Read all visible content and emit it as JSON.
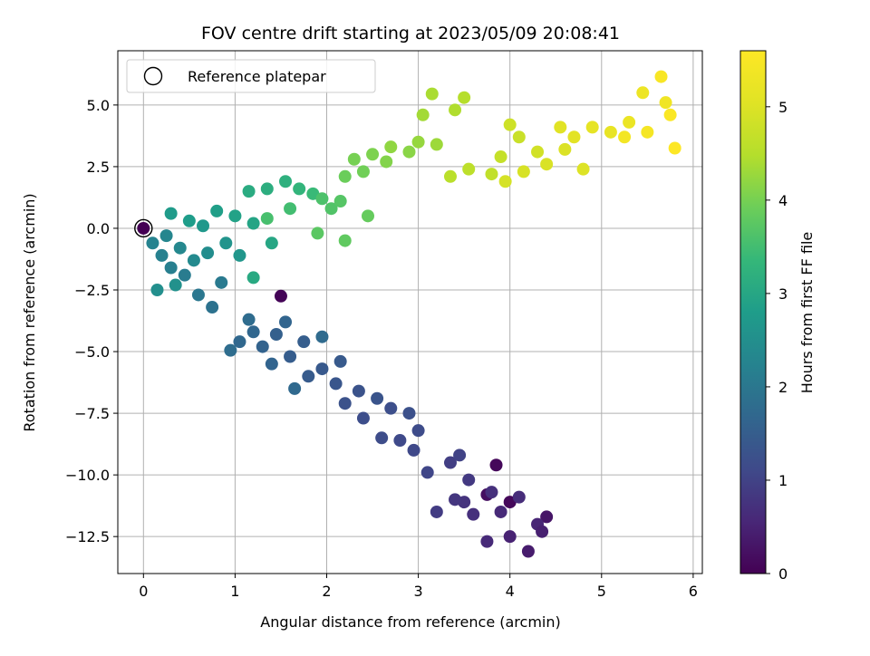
{
  "chart_data": {
    "type": "scatter",
    "title": "FOV centre drift starting at 2023/05/09 20:08:41",
    "xlabel": "Angular distance from reference (arcmin)",
    "ylabel": "Rotation from reference (arcmin)",
    "xlim": [
      -0.28,
      6.1
    ],
    "ylim": [
      -14.0,
      7.2
    ],
    "xticks": [
      0,
      1,
      2,
      3,
      4,
      5,
      6
    ],
    "xtick_labels": [
      "0",
      "1",
      "2",
      "3",
      "4",
      "5",
      "6"
    ],
    "yticks": [
      5.0,
      2.5,
      0.0,
      -2.5,
      -5.0,
      -7.5,
      -10.0,
      -12.5
    ],
    "ytick_labels": [
      "5.0",
      "2.5",
      "0.0",
      "−2.5",
      "−5.0",
      "−7.5",
      "−10.0",
      "−12.5"
    ],
    "grid": true,
    "legend": {
      "position": "upper-left",
      "entries": [
        "Reference platepar"
      ]
    },
    "reference_point": {
      "x": 0.0,
      "y": 0.0,
      "marker": "hollow-circle"
    },
    "colorbar": {
      "label": "Hours from first FF file",
      "range": [
        0,
        5.6
      ],
      "ticks": [
        0,
        1,
        2,
        3,
        4,
        5
      ],
      "tick_labels": [
        "0",
        "1",
        "2",
        "3",
        "4",
        "5"
      ],
      "colormap": "viridis"
    },
    "series": [
      {
        "color_by": "hours_from_first_ff",
        "points": [
          [
            0.0,
            0.0,
            0.0
          ],
          [
            1.5,
            -2.75,
            0.05
          ],
          [
            3.85,
            -9.6,
            0.1
          ],
          [
            4.0,
            -11.1,
            0.1
          ],
          [
            3.75,
            -10.8,
            0.2
          ],
          [
            4.4,
            -11.7,
            0.3
          ],
          [
            4.2,
            -13.1,
            0.4
          ],
          [
            4.0,
            -12.5,
            0.5
          ],
          [
            4.3,
            -12.0,
            0.55
          ],
          [
            3.9,
            -11.5,
            0.6
          ],
          [
            4.1,
            -10.9,
            0.65
          ],
          [
            3.6,
            -11.6,
            0.7
          ],
          [
            3.5,
            -11.1,
            0.75
          ],
          [
            3.75,
            -12.7,
            0.6
          ],
          [
            4.35,
            -12.3,
            0.45
          ],
          [
            3.8,
            -10.7,
            0.7
          ],
          [
            3.4,
            -11.0,
            0.8
          ],
          [
            3.55,
            -10.2,
            0.85
          ],
          [
            3.2,
            -11.5,
            0.9
          ],
          [
            3.35,
            -9.5,
            0.95
          ],
          [
            3.45,
            -9.2,
            1.0
          ],
          [
            3.1,
            -9.9,
            1.05
          ],
          [
            2.95,
            -9.0,
            1.1
          ],
          [
            2.8,
            -8.6,
            1.12
          ],
          [
            3.0,
            -8.2,
            1.15
          ],
          [
            2.6,
            -8.5,
            1.18
          ],
          [
            2.4,
            -7.7,
            1.2
          ],
          [
            2.7,
            -7.3,
            1.22
          ],
          [
            2.9,
            -7.5,
            1.25
          ],
          [
            2.2,
            -7.1,
            1.28
          ],
          [
            2.35,
            -6.6,
            1.3
          ],
          [
            2.55,
            -6.9,
            1.32
          ],
          [
            2.1,
            -6.3,
            1.35
          ],
          [
            1.95,
            -5.7,
            1.4
          ],
          [
            2.15,
            -5.4,
            1.42
          ],
          [
            1.8,
            -6.0,
            1.45
          ],
          [
            1.6,
            -5.2,
            1.48
          ],
          [
            1.75,
            -4.6,
            1.5
          ],
          [
            1.45,
            -4.3,
            1.55
          ],
          [
            1.3,
            -4.8,
            1.6
          ],
          [
            1.4,
            -5.5,
            1.62
          ],
          [
            1.55,
            -3.8,
            1.65
          ],
          [
            1.2,
            -4.2,
            1.68
          ],
          [
            1.05,
            -4.6,
            1.7
          ],
          [
            1.65,
            -6.5,
            1.72
          ],
          [
            1.95,
            -4.4,
            1.75
          ],
          [
            1.15,
            -3.7,
            1.78
          ],
          [
            0.95,
            -4.95,
            1.8
          ],
          [
            0.75,
            -3.2,
            1.9
          ],
          [
            0.6,
            -2.7,
            2.0
          ],
          [
            0.85,
            -2.2,
            2.05
          ],
          [
            0.45,
            -1.9,
            2.1
          ],
          [
            0.3,
            -1.6,
            2.15
          ],
          [
            0.2,
            -1.1,
            2.2
          ],
          [
            0.1,
            -0.6,
            2.25
          ],
          [
            0.25,
            -0.3,
            2.3
          ],
          [
            0.4,
            -0.8,
            2.35
          ],
          [
            0.55,
            -1.3,
            2.4
          ],
          [
            0.7,
            -1.0,
            2.45
          ],
          [
            0.15,
            -2.5,
            2.5
          ],
          [
            0.35,
            -2.3,
            2.55
          ],
          [
            0.9,
            -0.6,
            2.6
          ],
          [
            1.05,
            -1.1,
            2.65
          ],
          [
            0.65,
            0.1,
            2.7
          ],
          [
            0.3,
            0.6,
            2.75
          ],
          [
            0.5,
            0.3,
            2.8
          ],
          [
            0.8,
            0.7,
            2.85
          ],
          [
            1.0,
            0.5,
            2.9
          ],
          [
            1.2,
            0.2,
            2.95
          ],
          [
            1.4,
            -0.6,
            3.0
          ],
          [
            1.2,
            -2.0,
            3.05
          ],
          [
            1.15,
            1.5,
            3.1
          ],
          [
            1.35,
            1.6,
            3.15
          ],
          [
            1.55,
            1.9,
            3.2
          ],
          [
            1.7,
            1.6,
            3.3
          ],
          [
            1.85,
            1.4,
            3.4
          ],
          [
            1.6,
            0.8,
            3.5
          ],
          [
            1.35,
            0.4,
            3.55
          ],
          [
            1.95,
            1.2,
            3.6
          ],
          [
            2.05,
            0.8,
            3.65
          ],
          [
            2.15,
            1.1,
            3.7
          ],
          [
            1.9,
            -0.2,
            3.75
          ],
          [
            2.2,
            -0.5,
            3.8
          ],
          [
            2.45,
            0.5,
            3.85
          ],
          [
            2.2,
            2.1,
            3.9
          ],
          [
            2.4,
            2.3,
            3.95
          ],
          [
            2.3,
            2.8,
            4.0
          ],
          [
            2.5,
            3.0,
            4.05
          ],
          [
            2.65,
            2.7,
            4.1
          ],
          [
            2.9,
            3.1,
            4.15
          ],
          [
            2.7,
            3.3,
            4.2
          ],
          [
            3.0,
            3.5,
            4.25
          ],
          [
            3.2,
            3.4,
            4.3
          ],
          [
            3.05,
            4.6,
            4.35
          ],
          [
            3.15,
            5.45,
            4.4
          ],
          [
            3.4,
            4.8,
            4.45
          ],
          [
            3.5,
            5.3,
            4.5
          ],
          [
            3.35,
            2.1,
            4.55
          ],
          [
            3.55,
            2.4,
            4.6
          ],
          [
            3.8,
            2.2,
            4.65
          ],
          [
            3.9,
            2.9,
            4.7
          ],
          [
            4.1,
            3.7,
            4.75
          ],
          [
            4.0,
            4.2,
            4.8
          ],
          [
            4.3,
            3.1,
            4.85
          ],
          [
            3.95,
            1.9,
            4.9
          ],
          [
            4.15,
            2.3,
            4.92
          ],
          [
            4.4,
            2.6,
            4.95
          ],
          [
            4.6,
            3.2,
            4.97
          ],
          [
            4.8,
            2.4,
            5.0
          ],
          [
            4.55,
            4.1,
            5.05
          ],
          [
            4.7,
            3.7,
            5.1
          ],
          [
            4.9,
            4.1,
            5.15
          ],
          [
            5.1,
            3.9,
            5.2
          ],
          [
            5.3,
            4.3,
            5.25
          ],
          [
            5.45,
            5.5,
            5.3
          ],
          [
            5.7,
            5.1,
            5.35
          ],
          [
            5.25,
            3.7,
            5.4
          ],
          [
            5.5,
            3.9,
            5.45
          ],
          [
            5.65,
            6.15,
            5.5
          ],
          [
            5.75,
            4.6,
            5.55
          ],
          [
            5.8,
            3.25,
            5.6
          ]
        ]
      }
    ]
  }
}
